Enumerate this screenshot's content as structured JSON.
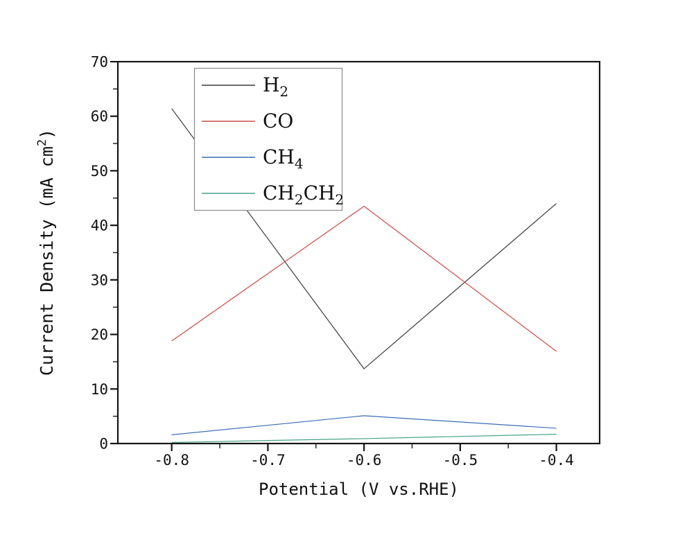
{
  "chart_data": {
    "type": "line",
    "title": "",
    "xlabel": "Potential (V vs.RHE)",
    "ylabel": "Current Density (mA cm2)",
    "ylabel_parts": [
      [
        "Current Density (mA cm",
        "normal"
      ],
      [
        "2",
        "sup"
      ],
      [
        ")",
        "normal"
      ]
    ],
    "xlim": [
      -0.856,
      -0.355
    ],
    "ylim": [
      0,
      70
    ],
    "x_ticks": [
      -0.8,
      -0.7,
      -0.6,
      -0.5,
      -0.4
    ],
    "x_tick_labels": [
      "-0.8",
      "-0.7",
      "-0.6",
      "-0.5",
      "-0.4"
    ],
    "x_minor_ticks": [
      -0.75,
      -0.65,
      -0.55,
      -0.45
    ],
    "y_ticks": [
      0,
      10,
      20,
      30,
      40,
      50,
      60,
      70
    ],
    "y_tick_labels": [
      "0",
      "10",
      "20",
      "30",
      "40",
      "50",
      "60",
      "70"
    ],
    "y_minor_ticks": [
      5,
      15,
      25,
      35,
      45,
      55,
      65
    ],
    "grid": false,
    "legend_position": "upper-left-inside",
    "axis_color": "#141414",
    "text_color": "#111111",
    "legend_border_color": "#8a8a8a",
    "series": [
      {
        "name": "H2",
        "label_parts": [
          [
            "H",
            "normal"
          ],
          [
            "2",
            "sub"
          ]
        ],
        "color": "#3a3a3a",
        "x": [
          -0.8,
          -0.6,
          -0.4
        ],
        "y": [
          61.4,
          13.7,
          44.0
        ]
      },
      {
        "name": "CO",
        "label_parts": [
          [
            "CO",
            "normal"
          ]
        ],
        "color": "#cb4b46",
        "x": [
          -0.8,
          -0.6,
          -0.4
        ],
        "y": [
          18.8,
          43.5,
          16.9
        ]
      },
      {
        "name": "CH4",
        "label_parts": [
          [
            "CH",
            "normal"
          ],
          [
            "4",
            "sub"
          ]
        ],
        "color": "#3a6cb5",
        "x": [
          -0.8,
          -0.6,
          -0.4
        ],
        "y": [
          1.6,
          5.1,
          2.8
        ]
      },
      {
        "name": "CH2CH2",
        "label_parts": [
          [
            "CH",
            "normal"
          ],
          [
            "2",
            "sub"
          ],
          [
            "CH",
            "normal"
          ],
          [
            "2",
            "sub"
          ]
        ],
        "color": "#44a287",
        "x": [
          -0.8,
          -0.6,
          -0.4
        ],
        "y": [
          0.2,
          0.9,
          1.7
        ]
      }
    ]
  }
}
